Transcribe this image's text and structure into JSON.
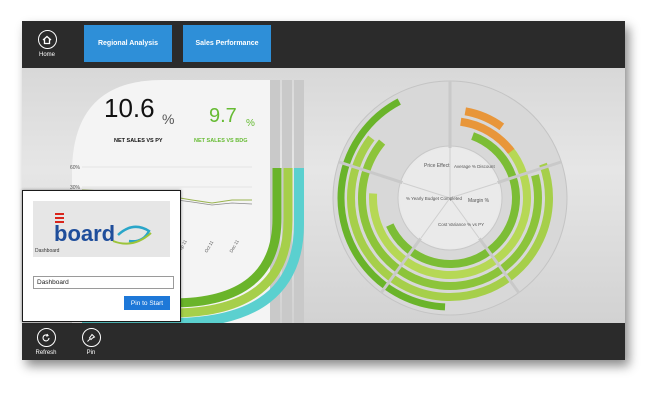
{
  "topbar": {
    "home_label": "Home",
    "tabs": [
      {
        "label": "Regional Analysis"
      },
      {
        "label": "Sales Performance"
      }
    ]
  },
  "dashboard": {
    "kpi_left": {
      "value": "10.6",
      "unit": "%",
      "label": "NET SALES VS PY"
    },
    "kpi_right": {
      "value": "9.7",
      "unit": "%",
      "label": "NET SALES VS BDG"
    },
    "mini_chart": {
      "y_ticks": [
        "60%",
        "30%"
      ],
      "x_ticks": [
        "Sep 11",
        "Oct 11",
        "Dec 11"
      ]
    },
    "radial_segments": [
      {
        "label": "Price Effect"
      },
      {
        "label": "Average % Discount"
      },
      {
        "label": "Margin %"
      },
      {
        "label": "Cost Variance % vs PY"
      },
      {
        "label": "% Yearly Budget Completed"
      }
    ],
    "colors": {
      "green": "#6ab42a",
      "light_green": "#a6cf4a",
      "teal": "#5bd0cf",
      "orange": "#e8963a",
      "value_green": "#66bb33"
    }
  },
  "pin_dialog": {
    "logo_text": "board",
    "logo_caption": "Dashboard",
    "name_value": "Dashboard",
    "pin_button": "Pin to Start"
  },
  "bottombar": {
    "refresh_label": "Refresh",
    "pin_label": "Pin"
  }
}
